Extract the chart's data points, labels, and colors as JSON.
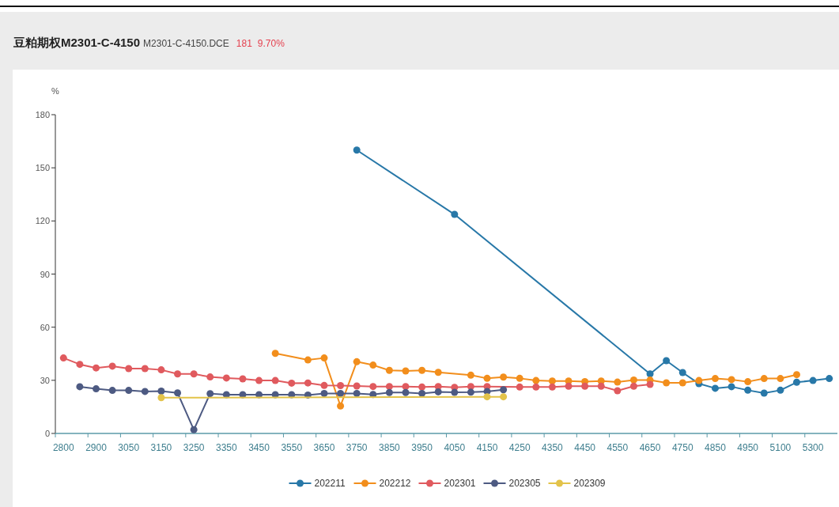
{
  "chart_data": {
    "type": "line",
    "title": "豆粕期权M2301-C-4150",
    "subtitle": "M2301-C-4150.DCE",
    "annotations": [
      "181",
      "9.70%"
    ],
    "ylabel": "%",
    "categories": [
      "2800",
      null,
      "2900",
      null,
      "3050",
      null,
      "3150",
      null,
      "3250",
      null,
      "3350",
      null,
      "3450",
      null,
      "3550",
      null,
      "3650",
      null,
      "3750",
      null,
      "3850",
      null,
      "3950",
      null,
      "4050",
      null,
      "4150",
      null,
      "4250",
      null,
      "4350",
      null,
      "4450",
      null,
      "4550",
      null,
      "4650",
      null,
      "4750",
      null,
      "4850",
      null,
      "4950",
      null,
      "5100",
      null,
      "5300",
      null
    ],
    "ylim": [
      0,
      180
    ],
    "yticks": [
      0,
      30,
      60,
      90,
      120,
      150,
      180
    ],
    "grid": false,
    "legend": "bottom",
    "marker": "circle",
    "series": [
      {
        "name": "202211",
        "color": "#2878a8",
        "values": [
          null,
          null,
          null,
          null,
          null,
          null,
          null,
          null,
          null,
          null,
          null,
          null,
          null,
          null,
          null,
          null,
          null,
          null,
          160,
          null,
          null,
          null,
          null,
          null,
          123.7,
          null,
          null,
          null,
          null,
          null,
          null,
          null,
          null,
          null,
          null,
          null,
          33.6,
          41.1,
          34.4,
          28.1,
          25.5,
          26.4,
          24.4,
          22.8,
          24.4,
          28.9,
          29.9,
          31
        ]
      },
      {
        "name": "202212",
        "color": "#f28e1c",
        "values": [
          null,
          null,
          null,
          null,
          null,
          null,
          null,
          null,
          null,
          null,
          null,
          null,
          null,
          45.2,
          null,
          41.5,
          42.6,
          15.5,
          40.5,
          38.6,
          35.6,
          35.3,
          35.6,
          34.5,
          null,
          32.9,
          31.1,
          31.8,
          31.1,
          29.9,
          29.6,
          29.6,
          29.3,
          29.6,
          29,
          30.2,
          30.1,
          28.6,
          28.6,
          29.9,
          31,
          30.4,
          29.2,
          31,
          31,
          33.2,
          null,
          null
        ]
      },
      {
        "name": "202301",
        "color": "#e05a5e",
        "values": [
          42.6,
          39,
          37,
          38,
          36.6,
          36.6,
          35.9,
          33.6,
          33.6,
          31.9,
          31.3,
          30.8,
          29.9,
          29.9,
          28.4,
          28.5,
          27.1,
          27,
          26.8,
          26.5,
          26.5,
          26.5,
          26.2,
          26.5,
          26,
          26.5,
          26.5,
          null,
          26.2,
          26.2,
          26.2,
          26.7,
          26.7,
          26.7,
          24.1,
          26.7,
          27.7,
          null,
          null,
          null,
          null,
          null,
          null,
          null,
          null,
          null,
          null,
          null
        ]
      },
      {
        "name": "202305",
        "color": "#4d5a82",
        "values": [
          null,
          26.4,
          25.2,
          24.3,
          24.3,
          23.7,
          23.9,
          22.9,
          2.1,
          22.5,
          21.9,
          21.9,
          21.9,
          21.9,
          21.9,
          21.7,
          22.6,
          22.6,
          22.6,
          22,
          23.1,
          23.1,
          22.6,
          23.5,
          23.2,
          23.3,
          23.7,
          24.7,
          null,
          null,
          null,
          null,
          null,
          null,
          null,
          null,
          null,
          null,
          null,
          null,
          null,
          null,
          null,
          null,
          null,
          null,
          null,
          null
        ]
      },
      {
        "name": "202309",
        "color": "#e3c34a",
        "values": [
          null,
          null,
          null,
          null,
          null,
          null,
          20.2,
          null,
          null,
          null,
          null,
          null,
          null,
          null,
          null,
          null,
          null,
          null,
          null,
          null,
          null,
          null,
          null,
          null,
          null,
          null,
          20.7,
          20.7,
          null,
          null,
          null,
          null,
          null,
          null,
          null,
          null,
          null,
          null,
          null,
          null,
          null,
          null,
          null,
          null,
          null,
          null,
          null,
          null
        ]
      }
    ]
  }
}
